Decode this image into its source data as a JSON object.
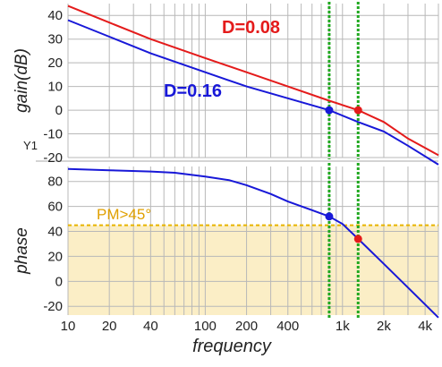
{
  "chart_data": [
    {
      "type": "line",
      "ylabel": "gain(dB)",
      "corner_label": "Y1",
      "x_scale": "log",
      "xlim": [
        10,
        5000
      ],
      "ylim": [
        -20,
        45
      ],
      "yticks": [
        40,
        30,
        20,
        10,
        0,
        -10,
        -20
      ],
      "grid": true,
      "series": [
        {
          "name": "D=0.08",
          "color": "#e41b1b",
          "x": [
            10,
            20,
            40,
            100,
            200,
            400,
            800,
            1300,
            2000,
            3000,
            5000
          ],
          "y": [
            44,
            37,
            30,
            22,
            16,
            10,
            4,
            0,
            -5,
            -12,
            -19
          ]
        },
        {
          "name": "D=0.16",
          "color": "#1818d8",
          "x": [
            10,
            20,
            40,
            100,
            200,
            400,
            800,
            1300,
            2000,
            3000,
            5000
          ],
          "y": [
            38,
            31,
            24,
            16,
            10,
            5,
            0,
            -5,
            -9,
            -15,
            -23
          ]
        }
      ],
      "markers": [
        {
          "series": "D=0.16",
          "x": 800,
          "y": 0,
          "color": "#1818d8"
        },
        {
          "series": "D=0.08",
          "x": 1300,
          "y": 0,
          "color": "#e41b1b"
        }
      ],
      "vlines": [
        800,
        1300
      ]
    },
    {
      "type": "line",
      "ylabel": "phase",
      "xlabel": "frequency",
      "x_scale": "log",
      "xlim": [
        10,
        5000
      ],
      "ylim": [
        -27,
        92
      ],
      "yticks": [
        80,
        60,
        40,
        20,
        0,
        -20
      ],
      "xtick_values": [
        10,
        20,
        40,
        100,
        200,
        400,
        1000,
        2000,
        4000
      ],
      "xtick_labels": [
        "10",
        "20",
        "40",
        "100",
        "200",
        "400",
        "1k",
        "2k",
        "4k"
      ],
      "grid": true,
      "threshold": {
        "label": "PM>45°",
        "value": 45,
        "color": "#e0a800"
      },
      "series": [
        {
          "name": "phase",
          "color": "#1818d8",
          "x": [
            10,
            20,
            40,
            60,
            100,
            150,
            200,
            300,
            400,
            600,
            800,
            1000,
            1300,
            2000,
            3000,
            5000
          ],
          "y": [
            90,
            89,
            88,
            87,
            84,
            81,
            77,
            70,
            64,
            57,
            52,
            46,
            34,
            14,
            -5,
            -29
          ]
        }
      ],
      "markers": [
        {
          "x": 800,
          "y": 52,
          "color": "#1818d8"
        },
        {
          "x": 1300,
          "y": 34,
          "color": "#e41b1b"
        }
      ],
      "vlines": [
        800,
        1300
      ]
    }
  ]
}
